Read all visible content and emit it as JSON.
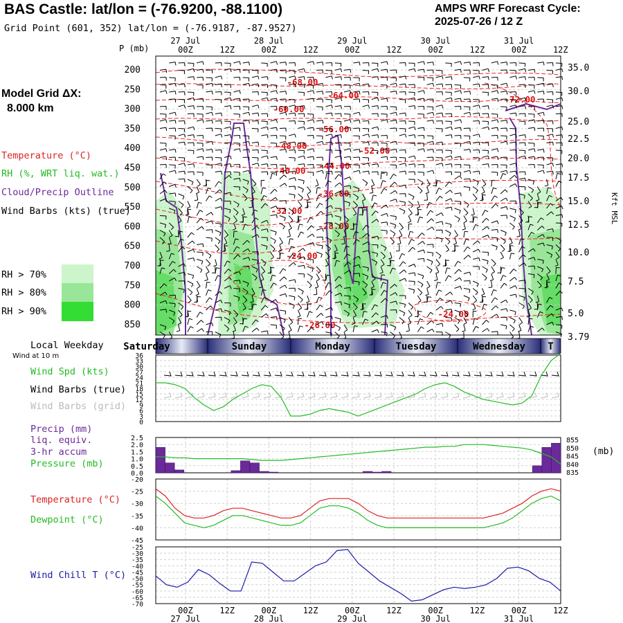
{
  "header": {
    "title": "BAS Castle:  lat/lon = (-76.9200, -88.1100)",
    "grid_point": "Grid Point (601, 352) lat/lon = (-76.9187, -87.9527)",
    "cycle_line1": "AMPS WRF Forecast Cycle:",
    "cycle_line2": "2025-07-26 / 12  Z"
  },
  "left_panel": {
    "model_grid_label": "Model Grid ΔX:",
    "model_grid_value": "8.000 km",
    "legend": [
      {
        "text": "Temperature (°C)",
        "color": "#dd2222"
      },
      {
        "text": "RH (%, WRT liq. wat.)",
        "color": "#22bb22"
      },
      {
        "text": "Cloud/Precip Outline",
        "color": "#6a2a9a"
      },
      {
        "text": "Wind Barbs (kts) (true)",
        "color": "#000000"
      }
    ],
    "rh_boxes": [
      {
        "text": "RH > 70%",
        "color": "#ccf5cc"
      },
      {
        "text": "RH > 80%",
        "color": "#99e699"
      },
      {
        "text": "RH > 90%",
        "color": "#33dd33"
      }
    ],
    "weekday_title": "Local Weekday",
    "wind_10m": "Wind at 10 m",
    "wind_panel_labels": [
      {
        "text": "Wind Spd (kts)",
        "color": "#22bb22"
      },
      {
        "text": "Wind Barbs (true)",
        "color": "#000000"
      },
      {
        "text": "Wind Barbs (grid)",
        "color": "#bbbbbb"
      }
    ],
    "precip_labels": [
      {
        "text": "Precip (mm)",
        "color": "#6a2a9a"
      },
      {
        "text": "liq. equiv.",
        "color": "#6a2a9a"
      },
      {
        "text": "3-hr accum",
        "color": "#6a2a9a"
      },
      {
        "text": "Pressure (mb)",
        "color": "#22bb22"
      }
    ],
    "temp_labels": [
      {
        "text": "Temperature (°C)",
        "color": "#dd2222"
      },
      {
        "text": "Dewpoint (°C)",
        "color": "#22bb22"
      }
    ],
    "windchill_label": {
      "text": "Wind Chill T (°C)",
      "color": "#1a1aaa"
    }
  },
  "time_axis": {
    "ticks": [
      "00Z",
      "12Z",
      "00Z",
      "12Z",
      "00Z",
      "12Z",
      "00Z",
      "12Z",
      "00Z",
      "12Z"
    ],
    "dates": [
      "27 Jul",
      "28 Jul",
      "29 Jul",
      "30 Jul",
      "31 Jul"
    ]
  },
  "weekdays": [
    "Saturday",
    "Sunday",
    "Monday",
    "Tuesday",
    "Wednesday",
    "T"
  ],
  "chart_data": [
    {
      "type": "heatmap",
      "ylabel": "P (mb)",
      "y2label": "Kft MSL",
      "pressure_ticks": [
        "200",
        "250",
        "300",
        "350",
        "400",
        "450",
        "500",
        "550",
        "600",
        "650",
        "700",
        "750",
        "800",
        "850"
      ],
      "height_ticks": [
        "35.0",
        "30.0",
        "25.0",
        "22.5",
        "20.0",
        "17.5",
        "15.0",
        "12.5",
        "10.0",
        "7.5",
        "5.0",
        "3.79"
      ],
      "temperature_contour_labels": [
        "-68.00",
        "-64.00",
        "-60.00",
        "-56.00",
        "-48.00",
        "-52.00",
        "-44.00",
        "-40.00",
        "-36.00",
        "-32.00",
        "-28.00",
        "-24.00",
        "-26.00",
        "-24.00",
        "-72.00"
      ]
    },
    {
      "type": "line",
      "series": [
        {
          "name": "Wind Spd (kts)",
          "values": [
            21,
            21,
            20,
            18,
            13,
            9,
            6,
            8,
            12,
            15,
            18,
            20,
            19,
            13,
            3,
            3,
            4,
            6,
            7,
            6,
            5,
            3,
            5,
            7,
            9,
            11,
            13,
            15,
            18,
            20,
            21,
            19,
            16,
            14,
            12,
            11,
            10,
            9,
            10,
            14,
            25,
            33,
            37
          ]
        }
      ],
      "ylim": [
        0,
        36
      ],
      "yticks": [
        "36",
        "33",
        "30",
        "27",
        "24",
        "21",
        "18",
        "15",
        "12",
        "9",
        "6",
        "3",
        "0"
      ]
    },
    {
      "type": "bar",
      "series": [
        {
          "name": "Precip (mm)",
          "values": [
            1.8,
            0.7,
            0.2,
            0,
            0,
            0,
            0,
            0,
            0.15,
            0.85,
            0.7,
            0.1,
            0.05,
            0,
            0,
            0,
            0,
            0,
            0,
            0,
            0,
            0,
            0.1,
            0.05,
            0.1,
            0,
            0,
            0,
            0,
            0,
            0,
            0,
            0,
            0,
            0,
            0,
            0,
            0,
            0,
            0,
            0.5,
            1.8,
            2.1
          ]
        },
        {
          "name": "Pressure (mb)",
          "values": [
            844,
            844,
            843.5,
            843.5,
            843,
            843,
            843,
            843,
            843,
            843,
            842.5,
            842,
            842,
            842,
            842.5,
            843,
            843.5,
            844,
            844.5,
            845,
            845.5,
            846,
            846.5,
            847,
            847.5,
            848,
            848.5,
            849,
            849.5,
            849.5,
            850,
            850,
            851,
            851,
            851,
            850.5,
            850,
            849.5,
            849,
            848,
            846,
            844,
            840
          ]
        }
      ],
      "ylim": [
        0,
        2.5
      ],
      "yticks": [
        "2.5",
        "2.0",
        "1.5",
        "1.0",
        "0.5",
        "0.0"
      ],
      "y2ticks": [
        "855",
        "850",
        "845",
        "840",
        "835"
      ],
      "y2label": "(mb)",
      "y2lim": [
        835,
        855
      ]
    },
    {
      "type": "line",
      "series": [
        {
          "name": "Temperature (°C)",
          "values": [
            -24,
            -27,
            -32,
            -35,
            -36,
            -36,
            -35,
            -33,
            -32,
            -32,
            -33,
            -34,
            -35,
            -36,
            -36,
            -35,
            -32,
            -29,
            -28,
            -28,
            -28,
            -30,
            -33,
            -35,
            -36,
            -36,
            -36,
            -36,
            -36,
            -36,
            -36,
            -36,
            -36,
            -36,
            -36,
            -35,
            -34,
            -32,
            -30,
            -27,
            -25,
            -24,
            -25
          ]
        },
        {
          "name": "Dewpoint (°C)",
          "values": [
            -27,
            -30,
            -34,
            -38,
            -39,
            -40,
            -39,
            -37,
            -35,
            -35,
            -36,
            -37,
            -38,
            -39,
            -39,
            -38,
            -35,
            -32,
            -31,
            -31,
            -32,
            -34,
            -37,
            -39,
            -40,
            -40,
            -40,
            -40,
            -40,
            -40,
            -40,
            -40,
            -40,
            -40,
            -40,
            -39,
            -38,
            -36,
            -33,
            -30,
            -28,
            -27,
            -29
          ]
        }
      ],
      "ylim": [
        -45,
        -20
      ],
      "yticks": [
        "-20",
        "-25",
        "-30",
        "-35",
        "-40",
        "-45"
      ]
    },
    {
      "type": "line",
      "series": [
        {
          "name": "Wind Chill T (°C)",
          "values": [
            -48,
            -55,
            -57,
            -53,
            -43,
            -47,
            -54,
            -60,
            -60,
            -37,
            -38,
            -45,
            -52,
            -52,
            -46,
            -40,
            -37,
            -28,
            -27,
            -38,
            -45,
            -52,
            -57,
            -62,
            -68,
            -67,
            -63,
            -59,
            -57,
            -58,
            -57,
            -55,
            -50,
            -42,
            -41,
            -44,
            -50,
            -53,
            -60
          ]
        }
      ],
      "ylim": [
        -70,
        -25
      ],
      "yticks": [
        "-25",
        "-30",
        "-35",
        "-40",
        "-45",
        "-50",
        "-55",
        "-60",
        "-65",
        "-70"
      ]
    }
  ]
}
